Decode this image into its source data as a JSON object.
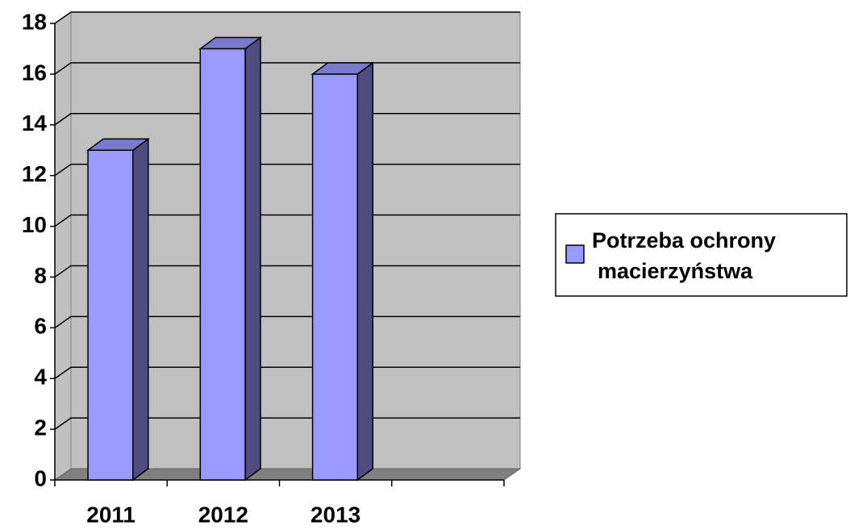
{
  "chart_data": {
    "type": "bar3d",
    "categories": [
      "2011",
      "2012",
      "2013",
      null
    ],
    "series": [
      {
        "name": "Potrzeba ochrony macierzyństwa",
        "color": "#9999ff",
        "values": [
          13,
          17,
          16,
          null
        ]
      }
    ],
    "ylim": [
      0,
      18
    ],
    "yticks": [
      0,
      2,
      4,
      6,
      8,
      10,
      12,
      14,
      16,
      18
    ],
    "grid": true,
    "legend": "right"
  }
}
